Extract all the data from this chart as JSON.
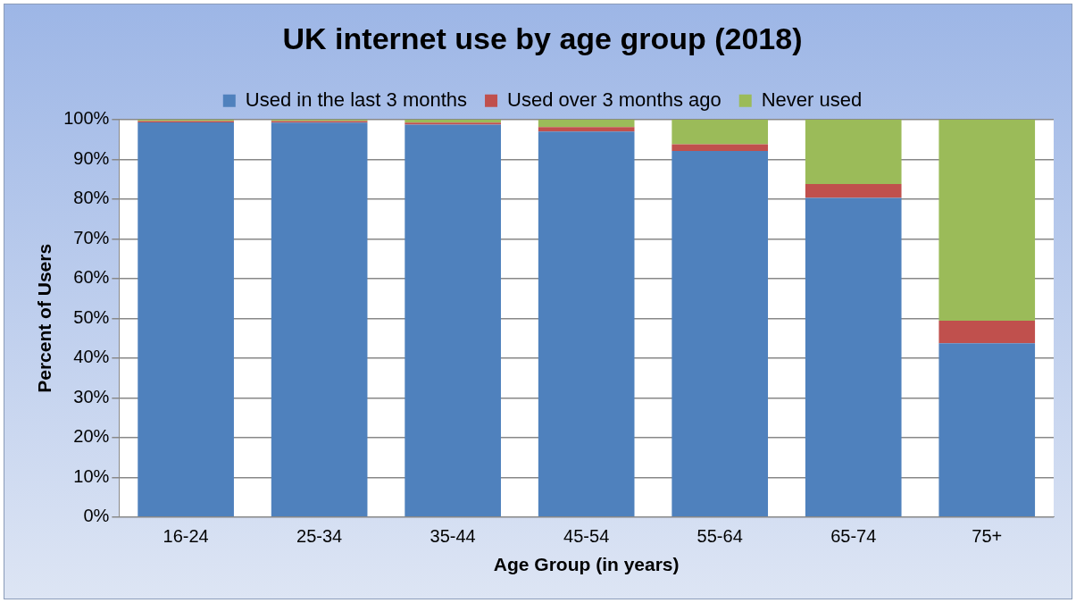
{
  "chart_data": {
    "type": "bar",
    "title": "UK internet use by age group (2018)",
    "xlabel": "Age Group (in years)",
    "ylabel": "Percent of Users",
    "categories": [
      "16-24",
      "25-34",
      "35-44",
      "45-54",
      "55-64",
      "65-74",
      "75+"
    ],
    "stacked": true,
    "legend": "top",
    "grid": "y",
    "ylim": [
      0,
      100
    ],
    "yticks": [
      {
        "value": 0,
        "label": "0%"
      },
      {
        "value": 10,
        "label": "10%"
      },
      {
        "value": 20,
        "label": "20%"
      },
      {
        "value": 30,
        "label": "30%"
      },
      {
        "value": 40,
        "label": "40%"
      },
      {
        "value": 50,
        "label": "50%"
      },
      {
        "value": 60,
        "label": "60%"
      },
      {
        "value": 70,
        "label": "70%"
      },
      {
        "value": 80,
        "label": "80%"
      },
      {
        "value": 90,
        "label": "90%"
      },
      {
        "value": 100,
        "label": "100%"
      }
    ],
    "series": [
      {
        "name": "Used in the last 3 months",
        "color": "#4f81bd",
        "values": [
          99.3,
          99.2,
          98.7,
          97.0,
          92.1,
          80.3,
          43.7
        ]
      },
      {
        "name": "Used over 3 months ago",
        "color": "#c0504d",
        "values": [
          0.3,
          0.4,
          0.5,
          1.1,
          1.7,
          3.5,
          5.7
        ]
      },
      {
        "name": "Never used",
        "color": "#9bbb59",
        "values": [
          0.4,
          0.4,
          0.8,
          1.9,
          6.2,
          16.2,
          50.6
        ]
      }
    ]
  }
}
